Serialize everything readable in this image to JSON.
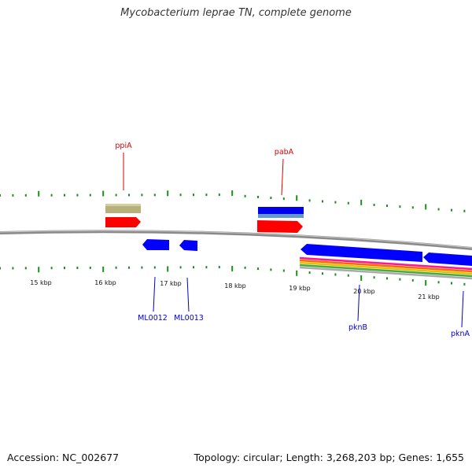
{
  "title": "Mycobacterium leprae TN, complete genome",
  "footer": {
    "accession": "Accession: NC_002677",
    "summary": "Topology: circular; Length: 3,268,203 bp; Genes: 1,655"
  },
  "scale": {
    "ticks": [
      "15 kbp",
      "16 kbp",
      "17 kbp",
      "18 kbp",
      "19 kbp",
      "20 kbp",
      "21 kbp"
    ]
  },
  "labels": [
    {
      "text": "ppiA",
      "color": "#e00000",
      "kind": "upper"
    },
    {
      "text": "pabA",
      "color": "#e00000",
      "kind": "upper"
    },
    {
      "text": "ML0012",
      "color": "#0000cc",
      "kind": "lower"
    },
    {
      "text": "ML0013",
      "color": "#0000cc",
      "kind": "lower"
    },
    {
      "text": "pknB",
      "color": "#0000cc",
      "kind": "lower"
    },
    {
      "text": "pknA",
      "color": "#0000cc",
      "kind": "lower"
    }
  ],
  "colors": {
    "backbone": "#8a8a8a",
    "tick": "#1e8c1e",
    "cds_forward": "#ff0000",
    "cds_reverse": "#0000ff",
    "khaki": "#b8b07a",
    "steel": "#5588cc"
  }
}
